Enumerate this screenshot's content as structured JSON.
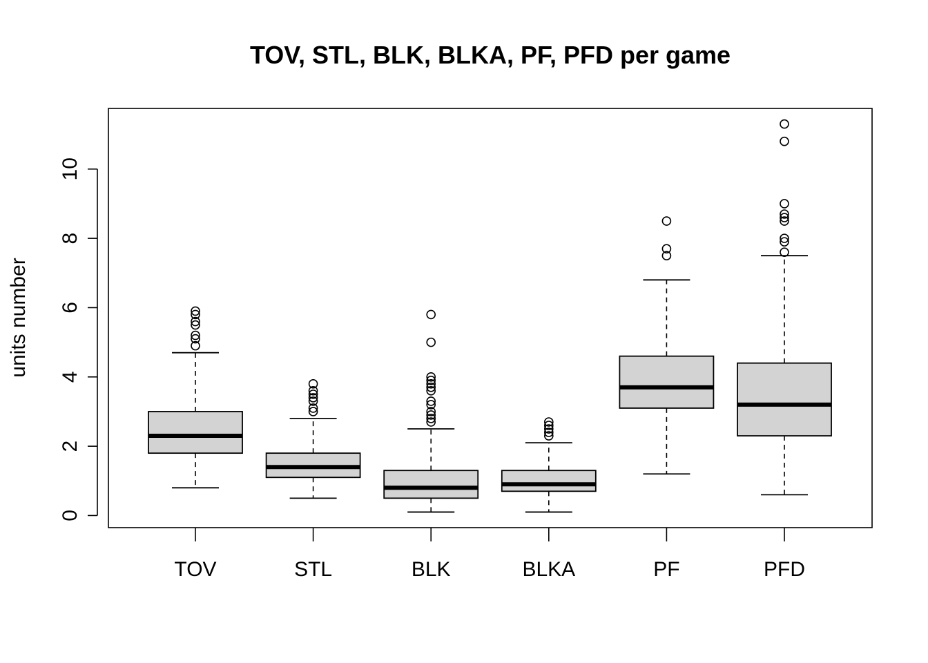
{
  "chart_data": {
    "type": "boxplot",
    "title": "TOV, STL, BLK, BLKA, PF, PFD per game",
    "xlabel": "",
    "ylabel": "units number",
    "ylim": [
      -0.35,
      11.75
    ],
    "yticks": [
      0,
      2,
      4,
      6,
      8,
      10
    ],
    "grid": false,
    "legend": "none",
    "box_fill": "#d3d3d3",
    "categories": [
      "TOV",
      "STL",
      "BLK",
      "BLKA",
      "PF",
      "PFD"
    ],
    "boxes": [
      {
        "name": "TOV",
        "whisker_low": 0.8,
        "q1": 1.8,
        "median": 2.3,
        "q3": 3.0,
        "whisker_high": 4.7,
        "outliers": [
          4.9,
          5.1,
          5.2,
          5.5,
          5.6,
          5.8,
          5.9
        ]
      },
      {
        "name": "STL",
        "whisker_low": 0.5,
        "q1": 1.1,
        "median": 1.4,
        "q3": 1.8,
        "whisker_high": 2.8,
        "outliers": [
          3.0,
          3.1,
          3.3,
          3.4,
          3.5,
          3.6,
          3.8
        ]
      },
      {
        "name": "BLK",
        "whisker_low": 0.1,
        "q1": 0.5,
        "median": 0.8,
        "q3": 1.3,
        "whisker_high": 2.5,
        "outliers": [
          2.7,
          2.8,
          2.9,
          3.0,
          3.2,
          3.3,
          3.6,
          3.7,
          3.8,
          3.9,
          4.0,
          5.0,
          5.8
        ]
      },
      {
        "name": "BLKA",
        "whisker_low": 0.1,
        "q1": 0.7,
        "median": 0.9,
        "q3": 1.3,
        "whisker_high": 2.1,
        "outliers": [
          2.3,
          2.4,
          2.5,
          2.6,
          2.7
        ]
      },
      {
        "name": "PF",
        "whisker_low": 1.2,
        "q1": 3.1,
        "median": 3.7,
        "q3": 4.6,
        "whisker_high": 6.8,
        "outliers": [
          7.5,
          7.7,
          8.5
        ]
      },
      {
        "name": "PFD",
        "whisker_low": 0.6,
        "q1": 2.3,
        "median": 3.2,
        "q3": 4.4,
        "whisker_high": 7.5,
        "outliers": [
          7.6,
          7.9,
          8.0,
          8.5,
          8.6,
          8.7,
          9.0,
          10.8,
          11.3
        ]
      }
    ]
  }
}
